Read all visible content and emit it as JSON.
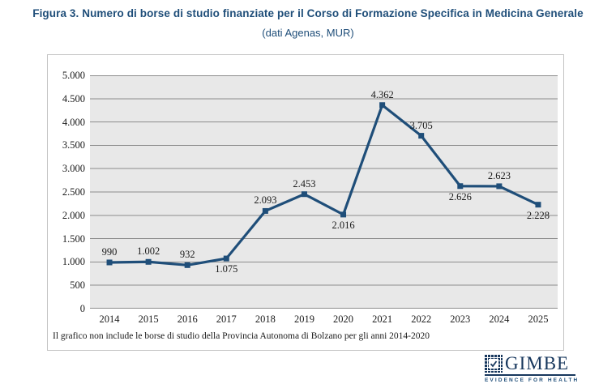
{
  "figure": {
    "title": "Figura 3. Numero di borse di studio finanziate per il Corso di Formazione Specifica in Medicina Generale",
    "subtitle": "(dati Agenas, MUR)",
    "footnote": "Il grafico non include le borse di studio della Provincia Autonoma di Bolzano per gli anni 2014-2020"
  },
  "logo": {
    "name": "GIMBE",
    "tagline": "EVIDENCE FOR HEALTH"
  },
  "colors": {
    "title": "#1F4E79",
    "line": "#1F4E79",
    "marker": "#1F4E79",
    "plot_bg": "#E8E8E8",
    "grid": "#8C8C8C",
    "frame_border": "#C3C3C3",
    "logo": "#17375D",
    "label_text": "#1a1a1a"
  },
  "chart_data": {
    "type": "line",
    "title": "Numero di borse di studio finanziate per il Corso di Formazione Specifica in Medicina Generale (dati Agenas, MUR)",
    "categories": [
      "2014",
      "2015",
      "2016",
      "2017",
      "2018",
      "2019",
      "2020",
      "2021",
      "2022",
      "2023",
      "2024",
      "2025"
    ],
    "values": [
      990,
      1002,
      932,
      1075,
      2093,
      2453,
      2016,
      4362,
      3705,
      2626,
      2623,
      2228
    ],
    "point_labels": [
      "990",
      "1.002",
      "932",
      "1.075",
      "2.093",
      "2.453",
      "2.016",
      "4.362",
      "3.705",
      "2.626",
      "2.623",
      "2.228"
    ],
    "label_placement": [
      "above",
      "above",
      "above",
      "below",
      "above",
      "above",
      "below",
      "above",
      "above",
      "below",
      "above",
      "below"
    ],
    "ylim": [
      0,
      5000
    ],
    "ytick_values": [
      0,
      500,
      1000,
      1500,
      2000,
      2500,
      3000,
      3500,
      4000,
      4500,
      5000
    ],
    "ytick_labels": [
      "0",
      "500",
      "1.000",
      "1.500",
      "2.000",
      "2.500",
      "3.000",
      "3.500",
      "4.000",
      "4.500",
      "5.000"
    ],
    "grid": true,
    "legend": false,
    "marker": "square"
  }
}
